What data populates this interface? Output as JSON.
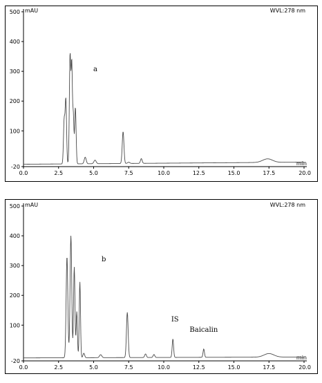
{
  "chart_data": [
    {
      "type": "line",
      "panel_label": "a",
      "ylabel": "mAU",
      "xlabel": "min",
      "header_right": "WVL:278 nm",
      "xlim": [
        0.0,
        20.0
      ],
      "ylim": [
        -20,
        500
      ],
      "x_ticks": [
        "0.0",
        "2.5",
        "5.0",
        "7.5",
        "10.0",
        "12.5",
        "15.0",
        "17.5",
        "20.0"
      ],
      "y_ticks": [
        "-20",
        "100",
        "200",
        "300",
        "400",
        "500"
      ],
      "baseline": -12,
      "baseline_end": -5,
      "peaks": [
        {
          "rt": 2.9,
          "height": 145,
          "width": 0.05
        },
        {
          "rt": 3.02,
          "height": 215,
          "width": 0.05
        },
        {
          "rt": 3.32,
          "height": 365,
          "width": 0.05
        },
        {
          "rt": 3.44,
          "height": 325,
          "width": 0.045
        },
        {
          "rt": 3.55,
          "height": 160,
          "width": 0.045
        },
        {
          "rt": 3.7,
          "height": 190,
          "width": 0.05
        },
        {
          "rt": 4.4,
          "height": 22,
          "width": 0.07
        },
        {
          "rt": 5.1,
          "height": 12,
          "width": 0.08
        },
        {
          "rt": 7.1,
          "height": 107,
          "width": 0.06
        },
        {
          "rt": 7.5,
          "height": 4,
          "width": 0.08
        },
        {
          "rt": 8.4,
          "height": 16,
          "width": 0.06
        },
        {
          "rt": 17.4,
          "height": 12,
          "width": 0.35
        }
      ],
      "annotations": []
    },
    {
      "type": "line",
      "panel_label": "b",
      "ylabel": "mAU",
      "xlabel": "min",
      "header_right": "WVL:278 nm",
      "xlim": [
        0.0,
        20.0
      ],
      "ylim": [
        -20,
        500
      ],
      "x_ticks": [
        "0.0",
        "2.5",
        "5.0",
        "7.5",
        "10.0",
        "12.5",
        "15.0",
        "17.5",
        "20.0"
      ],
      "y_ticks": [
        "-20",
        "100",
        "200",
        "300",
        "400",
        "500"
      ],
      "baseline": -10,
      "baseline_end": -7,
      "peaks": [
        {
          "rt": 3.1,
          "height": 340,
          "width": 0.06
        },
        {
          "rt": 3.38,
          "height": 410,
          "width": 0.06
        },
        {
          "rt": 3.62,
          "height": 305,
          "width": 0.05
        },
        {
          "rt": 3.8,
          "height": 155,
          "width": 0.045
        },
        {
          "rt": 4.02,
          "height": 255,
          "width": 0.045
        },
        {
          "rt": 4.3,
          "height": 15,
          "width": 0.06
        },
        {
          "rt": 5.5,
          "height": 10,
          "width": 0.08
        },
        {
          "rt": 7.4,
          "height": 152,
          "width": 0.06
        },
        {
          "rt": 8.7,
          "height": 12,
          "width": 0.06
        },
        {
          "rt": 9.3,
          "height": 10,
          "width": 0.06
        },
        {
          "rt": 10.65,
          "height": 62,
          "width": 0.05
        },
        {
          "rt": 12.85,
          "height": 28,
          "width": 0.05
        },
        {
          "rt": 17.5,
          "height": 12,
          "width": 0.35
        }
      ],
      "annotations": [
        {
          "label": "IS",
          "x": 10.8,
          "y": 112
        },
        {
          "label": "Baicalin",
          "x": 12.85,
          "y": 77
        }
      ]
    }
  ],
  "colors": {
    "trace": "#4a4a4a",
    "axis": "#000000",
    "border": "#000000"
  }
}
